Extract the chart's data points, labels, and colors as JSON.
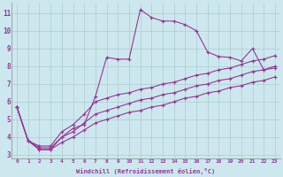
{
  "xlabel": "Windchill (Refroidissement éolien,°C)",
  "bg_color": "#cce8ee",
  "grid_color": "#aacccc",
  "line_color": "#993399",
  "xlim": [
    -0.5,
    23.5
  ],
  "ylim": [
    2.8,
    11.6
  ],
  "xticks": [
    0,
    1,
    2,
    3,
    4,
    5,
    6,
    7,
    8,
    9,
    10,
    11,
    12,
    13,
    14,
    15,
    16,
    17,
    18,
    19,
    20,
    21,
    22,
    23
  ],
  "yticks": [
    3,
    4,
    5,
    6,
    7,
    8,
    9,
    10,
    11
  ],
  "line1_x": [
    0,
    1,
    2,
    3,
    4,
    5,
    6,
    7,
    8,
    9,
    10,
    11,
    12,
    13,
    14,
    15,
    16,
    17,
    18,
    19,
    20,
    21,
    22,
    23
  ],
  "line1_y": [
    5.7,
    3.8,
    3.3,
    3.3,
    4.0,
    4.5,
    4.7,
    6.3,
    8.5,
    8.4,
    8.4,
    11.2,
    10.75,
    10.55,
    10.55,
    10.35,
    10.0,
    8.8,
    8.55,
    8.5,
    8.3,
    9.0,
    7.8,
    7.9
  ],
  "line2_x": [
    0,
    1,
    2,
    3,
    4,
    5,
    6,
    7,
    8,
    9,
    10,
    11,
    12,
    13,
    14,
    15,
    16,
    17,
    18,
    19,
    20,
    21,
    22,
    23
  ],
  "line2_y": [
    5.7,
    3.8,
    3.5,
    3.5,
    4.3,
    4.7,
    5.3,
    6.0,
    6.2,
    6.4,
    6.5,
    6.7,
    6.8,
    7.0,
    7.1,
    7.3,
    7.5,
    7.6,
    7.8,
    7.9,
    8.1,
    8.3,
    8.4,
    8.6
  ],
  "line3_x": [
    0,
    1,
    2,
    3,
    4,
    5,
    6,
    7,
    8,
    9,
    10,
    11,
    12,
    13,
    14,
    15,
    16,
    17,
    18,
    19,
    20,
    21,
    22,
    23
  ],
  "line3_y": [
    5.7,
    3.8,
    3.4,
    3.4,
    4.0,
    4.3,
    4.8,
    5.3,
    5.5,
    5.7,
    5.9,
    6.1,
    6.2,
    6.4,
    6.5,
    6.7,
    6.9,
    7.0,
    7.2,
    7.3,
    7.5,
    7.7,
    7.8,
    8.0
  ],
  "line4_x": [
    0,
    1,
    2,
    3,
    4,
    5,
    6,
    7,
    8,
    9,
    10,
    11,
    12,
    13,
    14,
    15,
    16,
    17,
    18,
    19,
    20,
    21,
    22,
    23
  ],
  "line4_y": [
    5.7,
    3.8,
    3.3,
    3.3,
    3.7,
    4.0,
    4.4,
    4.8,
    5.0,
    5.2,
    5.4,
    5.5,
    5.7,
    5.8,
    6.0,
    6.2,
    6.3,
    6.5,
    6.6,
    6.8,
    6.9,
    7.1,
    7.2,
    7.4
  ],
  "line1_markers_x": [
    0,
    1,
    2,
    3,
    4,
    5,
    6,
    7,
    8,
    11,
    12,
    13,
    14,
    15,
    16,
    17,
    18,
    19,
    20,
    21,
    22,
    23
  ],
  "line2_markers_x": [
    0,
    1,
    2,
    3,
    4,
    5,
    6,
    7,
    8,
    9,
    10
  ],
  "line3_markers_x": [
    0,
    1,
    2,
    3,
    4,
    5,
    6,
    7
  ],
  "line4_markers_x": [
    0,
    1,
    2,
    3,
    4,
    5,
    6
  ]
}
